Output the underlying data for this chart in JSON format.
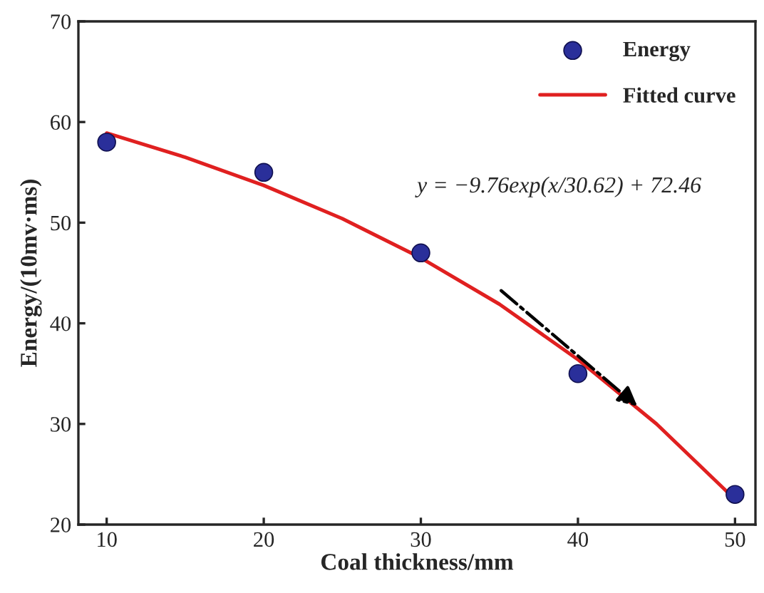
{
  "chart_data": {
    "type": "scatter",
    "xlabel": "Coal thickness/mm",
    "ylabel": "Energy/(10mv·ms)",
    "series": [
      {
        "name": "Energy",
        "color": "#2a2f9a",
        "marker": "circle",
        "x": [
          10,
          20,
          30,
          40,
          50
        ],
        "values": [
          58,
          55,
          47,
          35,
          23
        ]
      },
      {
        "name": "Fitted curve",
        "type": "line",
        "color": "#e02020",
        "marker": "none",
        "line_style": "solid",
        "x": [
          10,
          15,
          20,
          25,
          30,
          35,
          40,
          45,
          50
        ],
        "values": [
          58.9,
          56.5,
          53.7,
          50.4,
          46.5,
          41.9,
          36.4,
          30.0,
          22.5
        ]
      }
    ],
    "xlim": [
      8.2,
      51.3
    ],
    "xticks": [
      10,
      20,
      30,
      40,
      50
    ],
    "ylim": [
      20,
      70
    ],
    "yticks": [
      20,
      30,
      40,
      50,
      60,
      70
    ],
    "annotations": [
      "y = −9.76exp(x/30.62) + 72.46"
    ],
    "legend": "top right",
    "grid": false
  }
}
